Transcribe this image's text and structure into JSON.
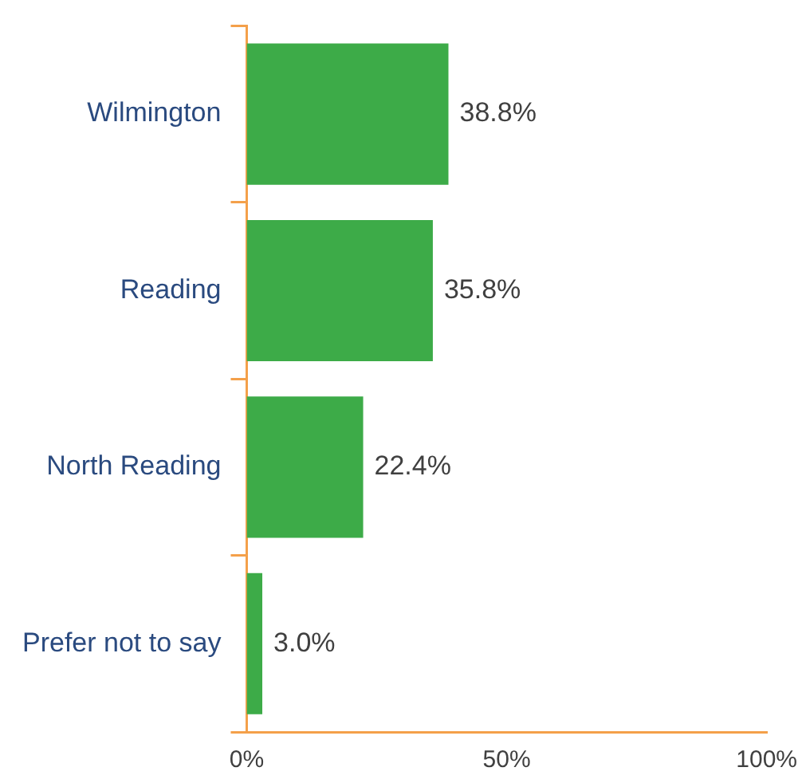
{
  "chart_data": {
    "type": "bar",
    "orientation": "horizontal",
    "categories": [
      "Wilmington",
      "Reading",
      "North Reading",
      "Prefer not to say"
    ],
    "values": [
      38.8,
      35.8,
      22.4,
      3.0
    ],
    "value_labels": [
      "38.8%",
      "35.8%",
      "22.4%",
      "3.0%"
    ],
    "color": "#3dab48",
    "xlim": [
      0,
      100
    ],
    "xticks": [
      {
        "value": 0,
        "label": "0%"
      },
      {
        "value": 50,
        "label": "50%"
      },
      {
        "value": 100,
        "label": "100%"
      }
    ]
  }
}
